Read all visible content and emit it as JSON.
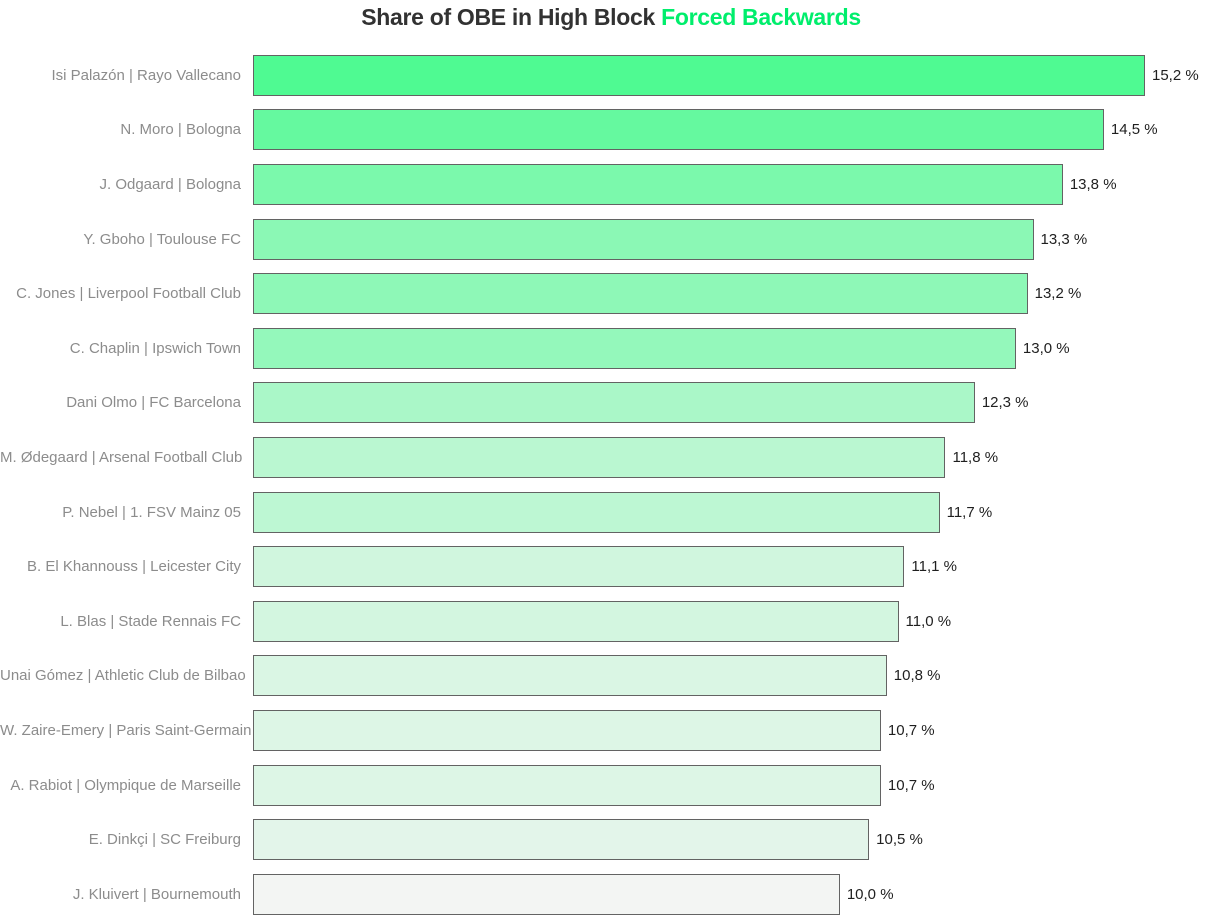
{
  "title": {
    "main": "Share of OBE in High Block",
    "accent": "Forced Backwards"
  },
  "colors": {
    "background": "#ffffff",
    "title_text": "#323232",
    "title_accent": "#00ee6c",
    "category_label_text": "#8c8c8c",
    "value_label_text": "#1f1f1f",
    "bar_border": "#636363",
    "bar_scale_low": "#f3f5f3",
    "bar_scale_high": "#4ffa92"
  },
  "chart_data": {
    "type": "bar",
    "orientation": "horizontal",
    "title": "Share of OBE in High Block Forced Backwards",
    "xlabel": "",
    "ylabel": "",
    "xlim": [
      0,
      15.2
    ],
    "color_domain": [
      10.0,
      15.2
    ],
    "grid": false,
    "legend": "none",
    "categories": [
      "Isi Palazón | Rayo Vallecano",
      "N. Moro | Bologna",
      "J. Odgaard | Bologna",
      "Y. Gboho | Toulouse FC",
      "C. Jones | Liverpool Football Club",
      "C. Chaplin | Ipswich Town",
      "Dani Olmo | FC Barcelona",
      "M. Ødegaard | Arsenal Football Club",
      "P. Nebel | 1. FSV Mainz 05",
      "B. El Khannouss | Leicester City",
      "L. Blas | Stade Rennais FC",
      "Unai Gómez | Athletic Club de Bilbao",
      "W. Zaire-Emery | Paris Saint-Germain",
      "A. Rabiot | Olympique de Marseille",
      "E. Dinkçi | SC Freiburg",
      "J. Kluivert | Bournemouth"
    ],
    "values": [
      15.2,
      14.5,
      13.8,
      13.3,
      13.2,
      13.0,
      12.3,
      11.8,
      11.7,
      11.1,
      11.0,
      10.8,
      10.7,
      10.7,
      10.5,
      10.0
    ],
    "value_labels": [
      "15,2 %",
      "14,5 %",
      "13,8 %",
      "13,3 %",
      "13,2 %",
      "13,0 %",
      "12,3 %",
      "11,8 %",
      "11,7 %",
      "11,1 %",
      "11,0 %",
      "10,8 %",
      "10,7 %",
      "10,7 %",
      "10,5 %",
      "10,0 %"
    ]
  }
}
